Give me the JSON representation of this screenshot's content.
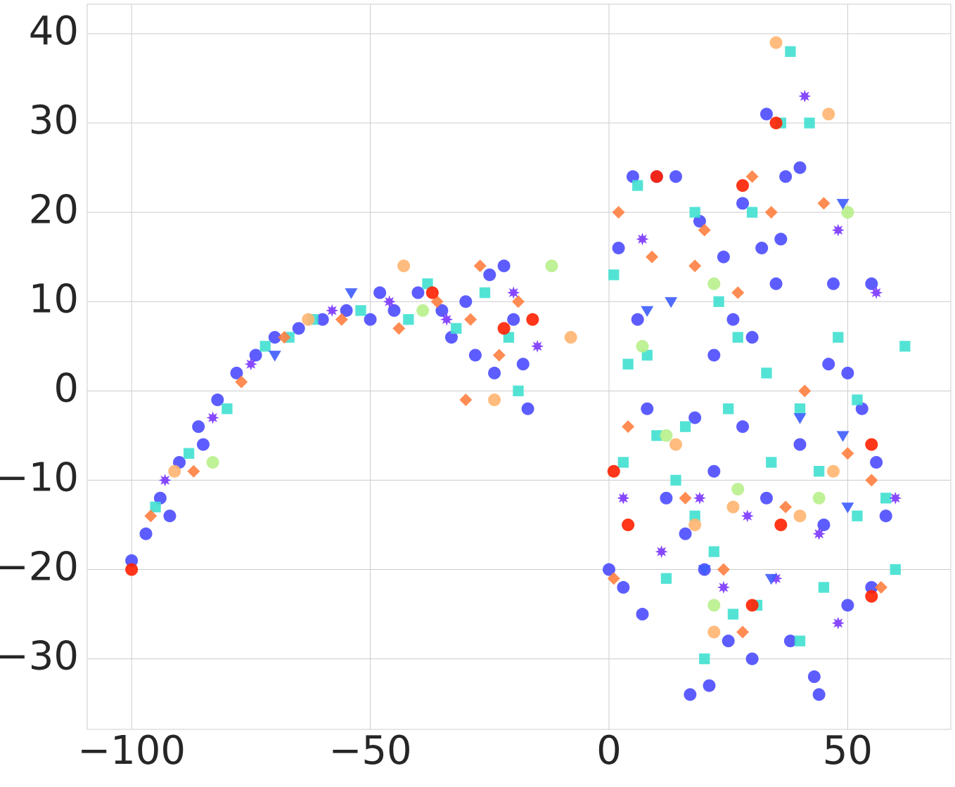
{
  "chart_data": {
    "type": "scatter",
    "xlim": [
      -109.3,
      71.6
    ],
    "ylim": [
      -37.9,
      43.3
    ],
    "xticks": [
      {
        "value": -100,
        "label": "−100"
      },
      {
        "value": -50,
        "label": "−50"
      },
      0,
      50
    ],
    "yticks": [
      {
        "value": -30,
        "label": "−30"
      },
      {
        "value": -20,
        "label": "−20"
      },
      {
        "value": -10,
        "label": "−10"
      },
      0,
      10,
      20,
      30,
      40
    ],
    "grid": true,
    "series": [
      {
        "color": "#4b4bff",
        "marker": "circle",
        "x": [
          -100,
          -97,
          -94,
          -90,
          -86,
          -82,
          -78,
          -74,
          -70,
          -65,
          -60,
          -55,
          -50,
          -45,
          -40,
          -35,
          -30,
          -25,
          -22,
          -20,
          -18,
          -24,
          -28,
          -17,
          -33,
          -48,
          -85,
          -92,
          5,
          10,
          14,
          2,
          6,
          8,
          12,
          16,
          20,
          25,
          30,
          17,
          21,
          38,
          44,
          43,
          0,
          3,
          7,
          33,
          37,
          40,
          36,
          32,
          22,
          26,
          30,
          35,
          46,
          50,
          53,
          56,
          58,
          47,
          55,
          18,
          22,
          28,
          33,
          40,
          45,
          50,
          55,
          24,
          19,
          28
        ],
        "y": [
          -19,
          -16,
          -12,
          -8,
          -4,
          -1,
          2,
          4,
          6,
          7,
          8,
          9,
          8,
          9,
          11,
          9,
          10,
          13,
          14,
          8,
          3,
          2,
          4,
          -2,
          6,
          11,
          -6,
          -14,
          24,
          24,
          24,
          16,
          8,
          -2,
          -12,
          -16,
          -20,
          -28,
          -30,
          -34,
          -33,
          -28,
          -34,
          -32,
          -20,
          -22,
          -25,
          31,
          24,
          25,
          17,
          16,
          4,
          8,
          6,
          12,
          3,
          2,
          -2,
          -8,
          -14,
          12,
          12,
          -3,
          -9,
          -4,
          -12,
          -6,
          -15,
          -24,
          -22,
          15,
          19,
          21
        ]
      },
      {
        "color": "#40e0d0",
        "marker": "square",
        "x": [
          -95,
          -88,
          -80,
          -72,
          -62,
          -52,
          -42,
          -32,
          -26,
          -21,
          -19,
          -38,
          -67,
          6,
          1,
          4,
          10,
          14,
          18,
          22,
          26,
          31,
          36,
          38,
          42,
          30,
          18,
          23,
          27,
          33,
          40,
          48,
          52,
          58,
          60,
          45,
          40,
          12,
          3,
          8,
          16,
          25,
          34,
          44,
          52,
          20,
          62
        ],
        "y": [
          -13,
          -7,
          -2,
          5,
          8,
          9,
          8,
          7,
          11,
          6,
          0,
          12,
          6,
          23,
          13,
          3,
          -5,
          -10,
          -14,
          -18,
          -25,
          -24,
          30,
          38,
          30,
          20,
          20,
          10,
          6,
          2,
          -2,
          6,
          -1,
          -12,
          -20,
          -22,
          -28,
          -21,
          -8,
          4,
          -4,
          -2,
          -8,
          -9,
          -14,
          -30,
          5
        ]
      },
      {
        "color": "#ff7f40",
        "marker": "diamond",
        "x": [
          -96,
          -87,
          -77,
          -68,
          -56,
          -44,
          -36,
          -29,
          -23,
          -27,
          -19,
          -30,
          2,
          9,
          4,
          16,
          24,
          28,
          34,
          30,
          20,
          27,
          41,
          50,
          55,
          57,
          18,
          1,
          45,
          37
        ],
        "y": [
          -14,
          -9,
          1,
          6,
          8,
          7,
          10,
          8,
          4,
          14,
          10,
          -1,
          20,
          15,
          -4,
          -12,
          -20,
          -27,
          20,
          24,
          18,
          11,
          0,
          -7,
          -10,
          -22,
          14,
          -21,
          21,
          -13
        ]
      },
      {
        "color": "#7a35ff",
        "marker": "star",
        "x": [
          -93,
          -83,
          -75,
          -58,
          -46,
          -34,
          -20,
          -15,
          7,
          3,
          19,
          29,
          44,
          48,
          56,
          41,
          24,
          11,
          35,
          48,
          60
        ],
        "y": [
          -10,
          -3,
          3,
          9,
          10,
          8,
          11,
          5,
          17,
          -12,
          -12,
          -14,
          -16,
          18,
          11,
          33,
          -22,
          -18,
          -21,
          -26,
          -12
        ]
      },
      {
        "color": "#ffb570",
        "marker": "circle",
        "x": [
          -91,
          -63,
          -43,
          -8,
          -24,
          35,
          46,
          18,
          26,
          40,
          22,
          14,
          47
        ],
        "y": [
          -9,
          8,
          14,
          6,
          -1,
          39,
          31,
          -15,
          -13,
          -14,
          -27,
          -6,
          -9
        ]
      },
      {
        "color": "#ff2000",
        "marker": "circle",
        "x": [
          -100,
          -37,
          -22,
          -16,
          10,
          28,
          35,
          1,
          4,
          55,
          30,
          36,
          55
        ],
        "y": [
          -20,
          11,
          7,
          8,
          24,
          23,
          30,
          -9,
          -15,
          -23,
          -24,
          -15,
          -6
        ]
      },
      {
        "color": "#b8f08c",
        "marker": "circle",
        "x": [
          -83,
          -39,
          -12,
          7,
          12,
          22,
          27,
          44,
          50,
          22
        ],
        "y": [
          -8,
          9,
          14,
          5,
          -5,
          12,
          -11,
          -12,
          20,
          -24
        ]
      },
      {
        "color": "#3d5cff",
        "marker": "triangle",
        "x": [
          13,
          20,
          50,
          40,
          49,
          34,
          49,
          8,
          -70,
          -54
        ],
        "y": [
          10,
          -20,
          -13,
          -3,
          -5,
          -21,
          21,
          9,
          4,
          11
        ]
      }
    ]
  }
}
